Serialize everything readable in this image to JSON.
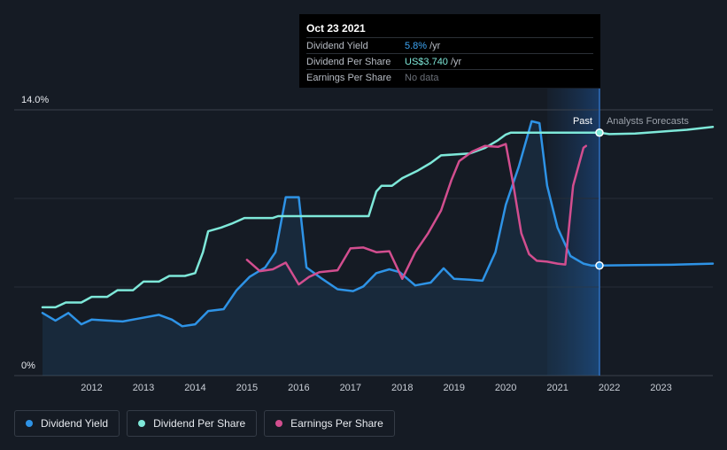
{
  "tooltip": {
    "date": "Oct 23 2021",
    "rows": [
      {
        "label": "Dividend Yield",
        "value": "5.8%",
        "unit": "/yr"
      },
      {
        "label": "Dividend Per Share",
        "value": "US$3.740",
        "unit": "/yr"
      },
      {
        "label": "Earnings Per Share",
        "value": "No data",
        "unit": ""
      }
    ]
  },
  "labels": {
    "past": "Past",
    "forecast": "Analysts Forecasts"
  },
  "legend": [
    {
      "label": "Dividend Yield",
      "color": "#2e93e6"
    },
    {
      "label": "Dividend Per Share",
      "color": "#7ee8d9"
    },
    {
      "label": "Earnings Per Share",
      "color": "#d24e8f"
    }
  ],
  "chart_data": {
    "type": "line",
    "title": "",
    "ylim": [
      0,
      14
    ],
    "y_tick_labels": [
      "14.0%",
      "0%"
    ],
    "x_ticks": [
      2012,
      2013,
      2014,
      2015,
      2016,
      2017,
      2018,
      2019,
      2020,
      2021,
      2022,
      2023
    ],
    "x_range": [
      2011.05,
      2024.0
    ],
    "today": 2021.81,
    "forecast_shade_start": 2020.8,
    "series": [
      {
        "name": "Dividend Yield",
        "color": "#2e93e6",
        "filled": true,
        "points": [
          [
            2011.05,
            3.3
          ],
          [
            2011.3,
            2.9
          ],
          [
            2011.55,
            3.3
          ],
          [
            2011.8,
            2.7
          ],
          [
            2012.0,
            2.95
          ],
          [
            2012.3,
            2.9
          ],
          [
            2012.6,
            2.85
          ],
          [
            2012.9,
            3.0
          ],
          [
            2013.3,
            3.2
          ],
          [
            2013.55,
            2.95
          ],
          [
            2013.75,
            2.6
          ],
          [
            2014.0,
            2.7
          ],
          [
            2014.25,
            3.4
          ],
          [
            2014.55,
            3.5
          ],
          [
            2014.8,
            4.5
          ],
          [
            2015.05,
            5.2
          ],
          [
            2015.35,
            5.7
          ],
          [
            2015.55,
            6.5
          ],
          [
            2015.75,
            9.4
          ],
          [
            2016.0,
            9.4
          ],
          [
            2016.15,
            5.7
          ],
          [
            2016.45,
            5.1
          ],
          [
            2016.75,
            4.55
          ],
          [
            2017.05,
            4.45
          ],
          [
            2017.25,
            4.7
          ],
          [
            2017.5,
            5.4
          ],
          [
            2017.75,
            5.6
          ],
          [
            2017.95,
            5.45
          ],
          [
            2018.25,
            4.75
          ],
          [
            2018.55,
            4.9
          ],
          [
            2018.8,
            5.65
          ],
          [
            2019.0,
            5.1
          ],
          [
            2019.3,
            5.05
          ],
          [
            2019.55,
            5.0
          ],
          [
            2019.8,
            6.5
          ],
          [
            2020.0,
            9.0
          ],
          [
            2020.25,
            11.0
          ],
          [
            2020.5,
            13.4
          ],
          [
            2020.65,
            13.3
          ],
          [
            2020.8,
            10.0
          ],
          [
            2021.0,
            7.8
          ],
          [
            2021.25,
            6.3
          ],
          [
            2021.5,
            5.9
          ],
          [
            2021.65,
            5.8
          ],
          [
            2021.81,
            5.8
          ]
        ]
      },
      {
        "name": "Dividend Yield Forecast",
        "color": "#2e93e6",
        "points": [
          [
            2021.81,
            5.8
          ],
          [
            2022.5,
            5.82
          ],
          [
            2023.2,
            5.84
          ],
          [
            2024.0,
            5.9
          ]
        ]
      },
      {
        "name": "Dividend Per Share",
        "color": "#7ee8d9",
        "points": [
          [
            2011.05,
            3.6
          ],
          [
            2011.3,
            3.6
          ],
          [
            2011.5,
            3.85
          ],
          [
            2011.8,
            3.85
          ],
          [
            2012.0,
            4.15
          ],
          [
            2012.3,
            4.15
          ],
          [
            2012.5,
            4.5
          ],
          [
            2012.8,
            4.5
          ],
          [
            2013.0,
            4.95
          ],
          [
            2013.3,
            4.95
          ],
          [
            2013.5,
            5.25
          ],
          [
            2013.8,
            5.25
          ],
          [
            2014.0,
            5.4
          ],
          [
            2014.15,
            6.5
          ],
          [
            2014.25,
            7.6
          ],
          [
            2014.5,
            7.8
          ],
          [
            2014.7,
            8.0
          ],
          [
            2014.95,
            8.3
          ],
          [
            2015.5,
            8.3
          ],
          [
            2015.6,
            8.4
          ],
          [
            2017.35,
            8.4
          ],
          [
            2017.5,
            9.7
          ],
          [
            2017.6,
            10.0
          ],
          [
            2017.8,
            10.0
          ],
          [
            2018.0,
            10.4
          ],
          [
            2018.3,
            10.8
          ],
          [
            2018.55,
            11.2
          ],
          [
            2018.75,
            11.6
          ],
          [
            2019.3,
            11.7
          ],
          [
            2019.6,
            12.0
          ],
          [
            2019.85,
            12.4
          ],
          [
            2020.0,
            12.7
          ],
          [
            2020.1,
            12.8
          ],
          [
            2021.81,
            12.8
          ]
        ]
      },
      {
        "name": "Dividend Per Share Forecast",
        "color": "#7ee8d9",
        "points": [
          [
            2021.81,
            12.8
          ],
          [
            2022.0,
            12.72
          ],
          [
            2022.5,
            12.75
          ],
          [
            2023.0,
            12.85
          ],
          [
            2023.5,
            12.95
          ],
          [
            2024.0,
            13.1
          ]
        ]
      },
      {
        "name": "Earnings Per Share",
        "color": "#d24e8f",
        "points": [
          [
            2015.0,
            6.1
          ],
          [
            2015.25,
            5.5
          ],
          [
            2015.5,
            5.6
          ],
          [
            2015.75,
            5.95
          ],
          [
            2016.0,
            4.8
          ],
          [
            2016.2,
            5.2
          ],
          [
            2016.4,
            5.45
          ],
          [
            2016.75,
            5.55
          ],
          [
            2017.0,
            6.7
          ],
          [
            2017.25,
            6.75
          ],
          [
            2017.5,
            6.5
          ],
          [
            2017.75,
            6.55
          ],
          [
            2018.0,
            5.1
          ],
          [
            2018.25,
            6.5
          ],
          [
            2018.5,
            7.5
          ],
          [
            2018.75,
            8.7
          ],
          [
            2018.95,
            10.3
          ],
          [
            2019.1,
            11.3
          ],
          [
            2019.35,
            11.8
          ],
          [
            2019.6,
            12.1
          ],
          [
            2019.85,
            12.05
          ],
          [
            2020.0,
            12.2
          ],
          [
            2020.15,
            10.0
          ],
          [
            2020.3,
            7.5
          ],
          [
            2020.45,
            6.4
          ],
          [
            2020.6,
            6.05
          ],
          [
            2020.8,
            6.0
          ],
          [
            2021.0,
            5.9
          ],
          [
            2021.15,
            5.85
          ],
          [
            2021.3,
            10.0
          ],
          [
            2021.5,
            12.0
          ],
          [
            2021.55,
            12.1
          ]
        ]
      }
    ],
    "markers": [
      {
        "series": "Dividend Per Share",
        "x": 2021.81,
        "y": 12.8
      },
      {
        "series": "Dividend Yield",
        "x": 2021.81,
        "y": 5.8
      }
    ]
  }
}
